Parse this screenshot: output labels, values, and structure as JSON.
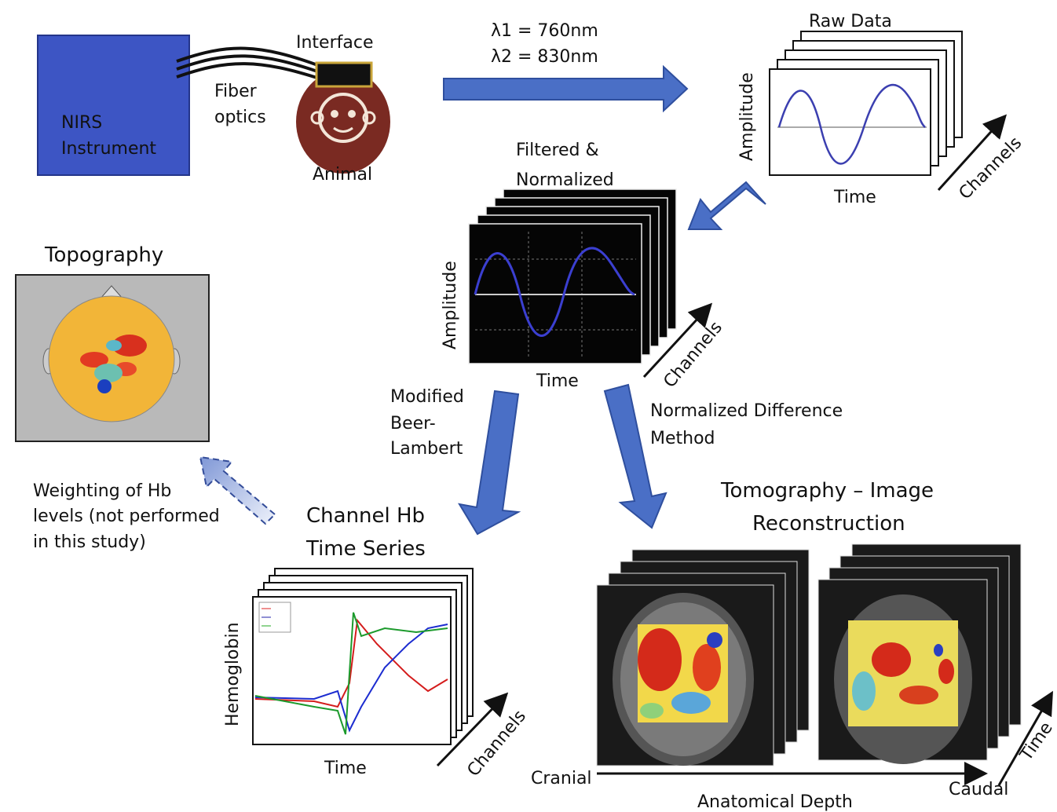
{
  "instrument": {
    "lines": [
      "NIRS",
      "Instrument"
    ]
  },
  "fiber": {
    "lines": [
      "Fiber",
      "optics"
    ]
  },
  "interface": "Interface",
  "animal": "Animal",
  "wavelengths": [
    "λ1 = 760nm",
    "λ2 = 830nm"
  ],
  "raw_data": {
    "title": "Raw Data",
    "y_label": "Amplitude",
    "x_label": "Time",
    "depth_label": "Channels"
  },
  "filtered": {
    "title": [
      "Filtered  &",
      "Normalized"
    ],
    "y_label": "Amplitude",
    "x_label": "Time",
    "depth_label": "Channels"
  },
  "topography": {
    "title": "Topography",
    "note": [
      "Weighting of Hb",
      "levels (not performed",
      "in this study)"
    ]
  },
  "mbl": [
    "Modified",
    "Beer-",
    "Lambert"
  ],
  "ndm": [
    "Normalized Difference",
    "Method"
  ],
  "channel_hb": {
    "title": [
      "Channel Hb",
      "Time Series"
    ],
    "y_label": "Hemoglobin",
    "x_label": "Time",
    "depth_label": "Channels"
  },
  "tomography": {
    "title": [
      "Tomography – Image",
      "Reconstruction"
    ],
    "start_label": "Cranial",
    "end_label": "Caudal",
    "axis_label": "Anatomical Depth",
    "depth_label": "Time"
  }
}
